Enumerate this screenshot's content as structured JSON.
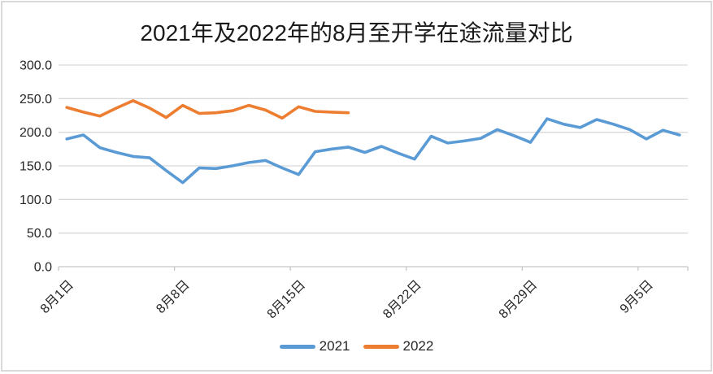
{
  "title": "2021年及2022年的8月至开学在途流量对比",
  "chart_data": {
    "type": "line",
    "title": "2021年及2022年的8月至开学在途流量对比",
    "xlabel": "",
    "ylabel": "",
    "ylim": [
      0,
      300
    ],
    "grid": true,
    "legend_position": "bottom",
    "x_tick_labels": [
      "8月1日",
      "8月8日",
      "8月15日",
      "8月22日",
      "8月29日",
      "9月5日"
    ],
    "x_tick_interval_days": 7,
    "y_axis": {
      "tick_values": [
        0,
        50,
        100,
        150,
        200,
        250,
        300
      ],
      "tick_labels": [
        "0.0",
        "50.0",
        "100.0",
        "150.0",
        "200.0",
        "250.0",
        "300.0"
      ]
    },
    "series": [
      {
        "name": "2021",
        "color": "#5B9BD5",
        "values": [
          190,
          196,
          177,
          170,
          164,
          162,
          143,
          125,
          147,
          146,
          150,
          155,
          158,
          147,
          137,
          171,
          175,
          178,
          170,
          179,
          169,
          160,
          194,
          184,
          187,
          191,
          204,
          195,
          185,
          220,
          212,
          207,
          219,
          212,
          204,
          190,
          203,
          196
        ]
      },
      {
        "name": "2022",
        "color": "#ED7D31",
        "values": [
          237,
          230,
          224,
          236,
          247,
          236,
          222,
          240,
          228,
          229,
          232,
          240,
          233,
          221,
          238,
          231,
          230,
          229
        ]
      }
    ]
  },
  "colors": {
    "gridline": "#d9d9d9",
    "axis": "#c6c6c6",
    "tick_text": "#262626",
    "title_text": "#1a1a1a",
    "background": "#ffffff",
    "frame_border": "#d9d9d9"
  }
}
